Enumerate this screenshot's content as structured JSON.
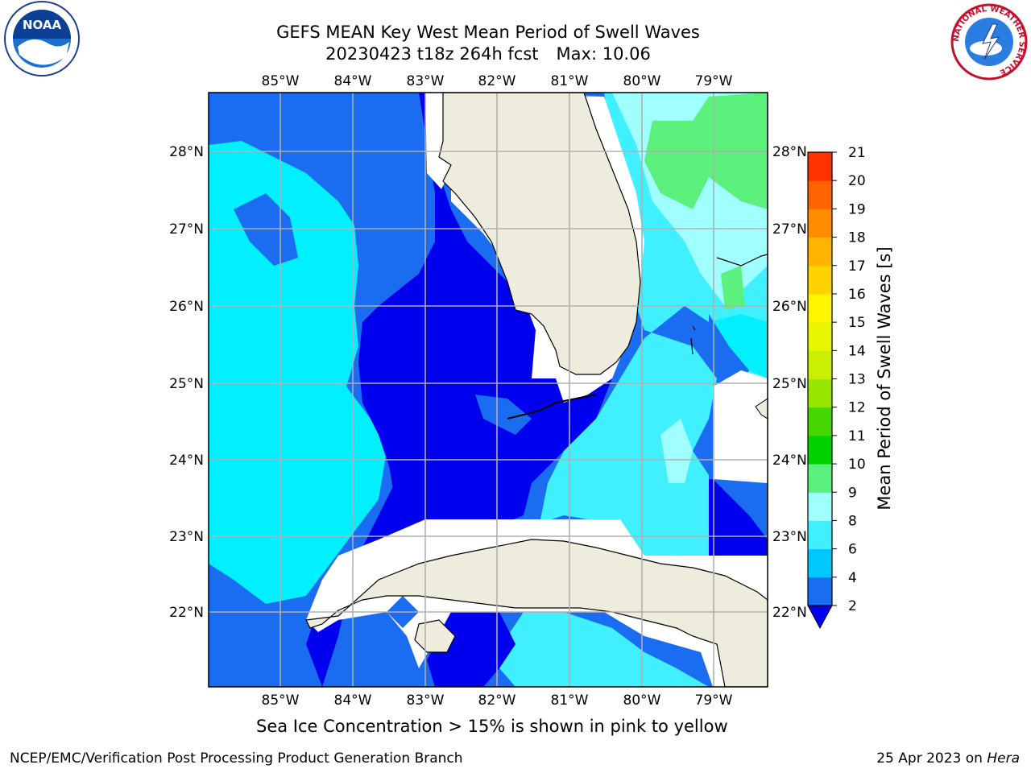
{
  "header": {
    "title_line1": "GEFS MEAN Key West Mean Period of Swell Waves",
    "run": "20230423 t18z 264h fcst",
    "max_label": "Max: 10.06"
  },
  "logos": {
    "left": "noaa-logo",
    "right": "national-weather-service-logo",
    "left_text": "NOAA",
    "right_ring_text": "NATIONAL WEATHER SERVICE"
  },
  "map": {
    "lon_labels": [
      "85°W",
      "84°W",
      "83°W",
      "82°W",
      "81°W",
      "80°W",
      "79°W"
    ],
    "lat_labels": [
      "28°N",
      "27°N",
      "26°N",
      "25°N",
      "24°N",
      "23°N",
      "22°N"
    ],
    "land_color": "#eeecdc",
    "grid_color": "#b0b0b0"
  },
  "colorbar": {
    "label": "Mean Period of Swell Waves [s]",
    "ticks": [
      "2",
      "4",
      "6",
      "8",
      "9",
      "10",
      "11",
      "12",
      "13",
      "14",
      "15",
      "16",
      "17",
      "18",
      "19",
      "20",
      "21"
    ],
    "colors": [
      "#1a6cf0",
      "#00c8ff",
      "#40f0ff",
      "#a0ffff",
      "#5cf07c",
      "#00d200",
      "#46d700",
      "#96e600",
      "#c8f000",
      "#e6f500",
      "#fff500",
      "#ffd200",
      "#ffb400",
      "#ff8c00",
      "#ff6400",
      "#ff3200"
    ],
    "under_color": "#0000ee"
  },
  "notes": {
    "sea_ice": "Sea Ice Concentration > 15% is shown in pink to yellow"
  },
  "footer": {
    "left": "NCEP/EMC/Verification Post Processing Product Generation Branch",
    "date": "25 Apr 2023 on ",
    "host": "Hera"
  }
}
